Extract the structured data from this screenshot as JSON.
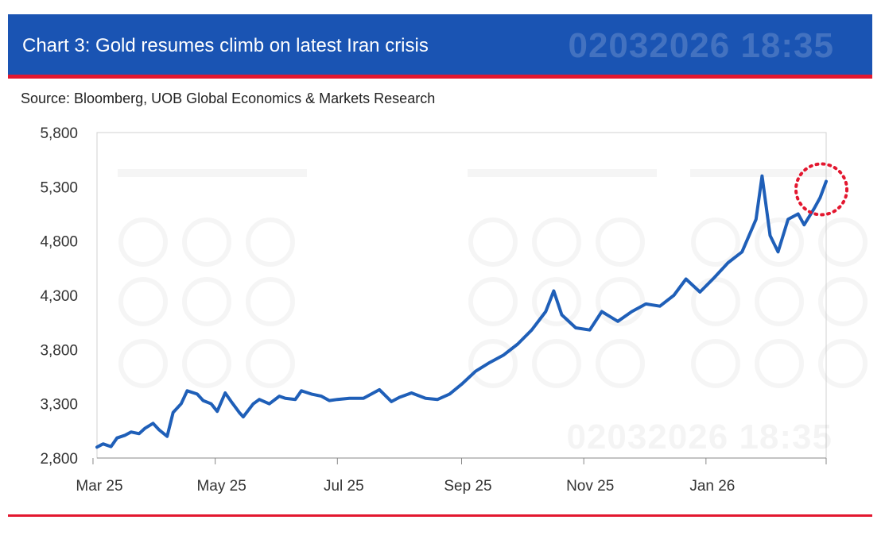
{
  "header": {
    "title": "Chart 3: Gold resumes climb on latest Iran crisis",
    "watermark": "02032026 18:35"
  },
  "source": "Source: Bloomberg, UOB Global Economics & Markets Research",
  "colors": {
    "band": "#1a54b3",
    "accent": "#e3172f",
    "series": "#1f5fb8",
    "highlight": "#e3172f"
  },
  "chart_data": {
    "type": "line",
    "title": "Chart 3: Gold resumes climb on latest Iran crisis",
    "xlabel": "",
    "ylabel": "",
    "ylim": [
      2800,
      5800
    ],
    "yticks": [
      "2,800",
      "3,300",
      "3,800",
      "4,300",
      "4,800",
      "5,300",
      "5,800"
    ],
    "xticks": [
      "Mar 25",
      "May 25",
      "Jul 25",
      "Sep 25",
      "Nov 25",
      "Jan 26"
    ],
    "grid": false,
    "legend": "none",
    "annotation": "dotted red circle highlighting latest move",
    "series": [
      {
        "x": [
          "2025-03-03",
          "2025-03-06",
          "2025-03-10",
          "2025-03-13",
          "2025-03-17",
          "2025-03-20",
          "2025-03-24",
          "2025-03-27",
          "2025-03-31",
          "2025-04-03",
          "2025-04-07",
          "2025-04-10",
          "2025-04-14",
          "2025-04-17",
          "2025-04-22",
          "2025-04-25",
          "2025-04-29",
          "2025-05-02",
          "2025-05-06",
          "2025-05-09",
          "2025-05-13",
          "2025-05-15",
          "2025-05-20",
          "2025-05-23",
          "2025-05-28",
          "2025-06-02",
          "2025-06-05",
          "2025-06-10",
          "2025-06-13",
          "2025-06-18",
          "2025-06-23",
          "2025-06-27",
          "2025-07-01",
          "2025-07-07",
          "2025-07-14",
          "2025-07-22",
          "2025-07-28",
          "2025-08-01",
          "2025-08-07",
          "2025-08-14",
          "2025-08-20",
          "2025-08-26",
          "2025-09-01",
          "2025-09-08",
          "2025-09-15",
          "2025-09-22",
          "2025-09-29",
          "2025-10-06",
          "2025-10-13",
          "2025-10-17",
          "2025-10-21",
          "2025-10-28",
          "2025-11-04",
          "2025-11-10",
          "2025-11-18",
          "2025-11-25",
          "2025-12-02",
          "2025-12-09",
          "2025-12-16",
          "2025-12-22",
          "2025-12-29",
          "2026-01-05",
          "2026-01-12",
          "2026-01-19",
          "2026-01-26",
          "2026-01-29",
          "2026-02-02",
          "2026-02-06",
          "2026-02-11",
          "2026-02-16",
          "2026-02-19",
          "2026-02-24",
          "2026-02-27",
          "2026-03-02"
        ],
        "values": [
          2900,
          2930,
          2905,
          2985,
          3010,
          3040,
          3025,
          3075,
          3120,
          3060,
          3000,
          3220,
          3300,
          3420,
          3390,
          3330,
          3300,
          3230,
          3400,
          3320,
          3220,
          3180,
          3300,
          3340,
          3300,
          3370,
          3350,
          3340,
          3420,
          3390,
          3370,
          3330,
          3340,
          3350,
          3350,
          3430,
          3320,
          3360,
          3400,
          3350,
          3340,
          3390,
          3480,
          3600,
          3680,
          3750,
          3850,
          3980,
          4150,
          4340,
          4120,
          4000,
          3980,
          4150,
          4060,
          4150,
          4220,
          4200,
          4300,
          4450,
          4330,
          4460,
          4600,
          4700,
          5000,
          5400,
          4850,
          4700,
          5000,
          5050,
          4950,
          5100,
          5200,
          5350
        ]
      }
    ]
  }
}
